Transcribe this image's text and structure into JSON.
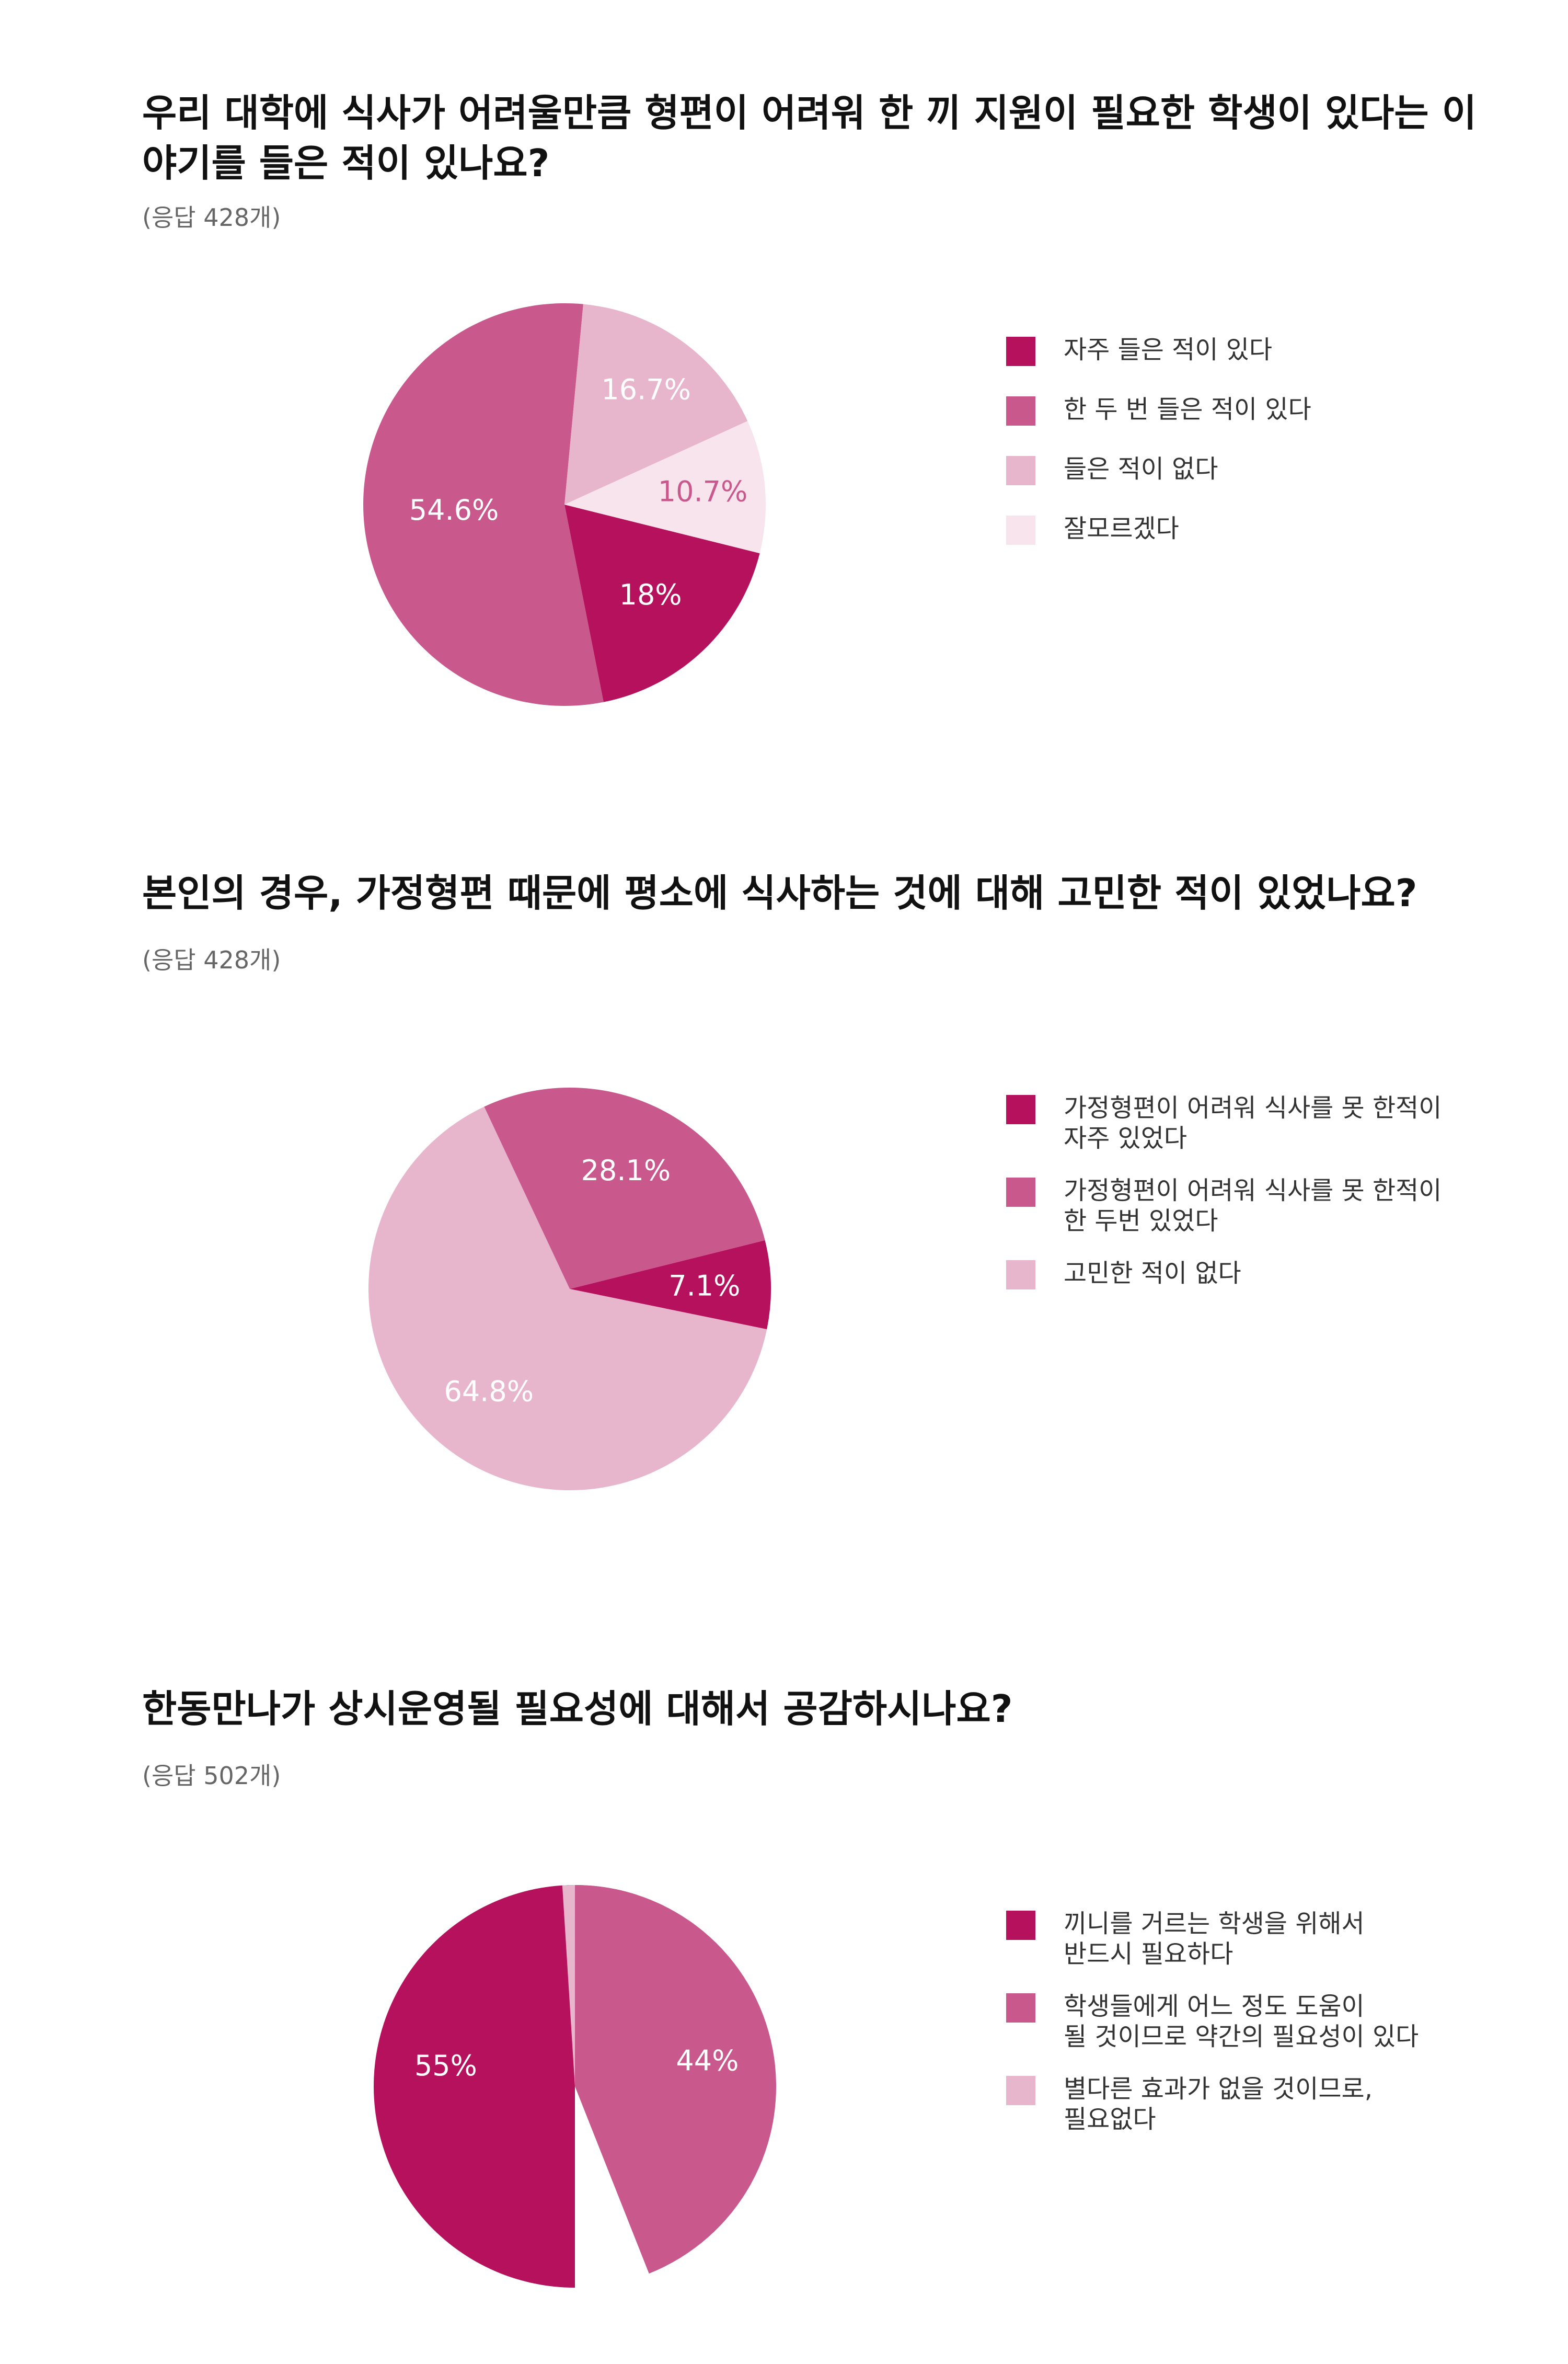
{
  "chart_data": [
    {
      "type": "pie",
      "title": "우리 대학에 식사가 어려울만큼 형편이 어려워 한 끼 지원이 필요한 학생이 있다는 이야기를 들은 적이 있나요?",
      "subtitle": "(응답 428개)",
      "slices": [
        {
          "label": "자주 들은 적이 있다",
          "value": 18,
          "value_label": "18%",
          "color": "#b5115c",
          "label_color": "#ffffff"
        },
        {
          "label": "한 두 번 들은 적이 있다",
          "value": 54.6,
          "value_label": "54.6%",
          "color": "#c9588d",
          "label_color": "#ffffff"
        },
        {
          "label": "들은 적이 없다",
          "value": 16.7,
          "value_label": "16.7%",
          "color": "#e8b6cc",
          "label_color": "#ffffff"
        },
        {
          "label": "잘모르겠다",
          "value": 10.7,
          "value_label": "10.7%",
          "color": "#f8e4ed",
          "label_color": "#c9588d"
        }
      ],
      "legend_placement": "right"
    },
    {
      "type": "pie",
      "title": "본인의 경우, 가정형편 때문에 평소에 식사하는 것에 대해 고민한 적이 있었나요?",
      "subtitle": "(응답 428개)",
      "slices": [
        {
          "label": "가정형편이 어려워 식사를 못 한적이\n자주 있었다",
          "value": 7.1,
          "value_label": "7.1%",
          "color": "#b5115c",
          "label_color": "#ffffff"
        },
        {
          "label": "가정형편이 어려워 식사를 못 한적이\n한 두번 있었다",
          "value": 28.1,
          "value_label": "28.1%",
          "color": "#c9588d",
          "label_color": "#ffffff"
        },
        {
          "label": "고민한 적이 없다",
          "value": 64.8,
          "value_label": "64.8%",
          "color": "#e8b6cc",
          "label_color": "#ffffff"
        }
      ],
      "legend_placement": "right"
    },
    {
      "type": "pie",
      "title": "한동만나가 상시운영될 필요성에 대해서 공감하시나요?",
      "subtitle": "(응답 502개)",
      "slices": [
        {
          "label": "끼니를 거르는 학생을 위해서\n반드시 필요하다",
          "value": 55,
          "value_label": "55%",
          "color": "#b5115c",
          "label_color": "#ffffff"
        },
        {
          "label": "학생들에게 어느 정도 도움이\n될 것이므로 약간의 필요성이 있다",
          "value": 44,
          "value_label": "44%",
          "color": "#c9588d",
          "label_color": "#ffffff"
        },
        {
          "label": "별다른 효과가 없을 것이므로,\n필요없다",
          "value": 1,
          "value_label": "",
          "color": "#e8b6cc",
          "label_color": "#ffffff"
        }
      ],
      "legend_placement": "right"
    }
  ]
}
